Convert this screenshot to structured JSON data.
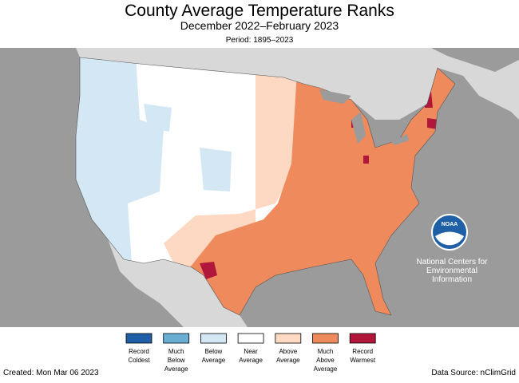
{
  "header": {
    "title": "County Average Temperature Ranks",
    "subtitle": "December 2022–February 2023",
    "period": "Period: 1895–2023"
  },
  "legend": [
    {
      "lines": [
        "Record",
        "Coldest"
      ],
      "color": "#1f5fa6"
    },
    {
      "lines": [
        "Much",
        "Below",
        "Average"
      ],
      "color": "#6aaed6"
    },
    {
      "lines": [
        "Below",
        "Average"
      ],
      "color": "#d4e7f5"
    },
    {
      "lines": [
        "Near",
        "Average"
      ],
      "color": "#ffffff"
    },
    {
      "lines": [
        "Above",
        "Average"
      ],
      "color": "#fdd8c2"
    },
    {
      "lines": [
        "Much",
        "Above",
        "Average"
      ],
      "color": "#ee8a5b"
    },
    {
      "lines": [
        "Record",
        "Warmest"
      ],
      "color": "#b0173a"
    }
  ],
  "logo": {
    "text": "NOAA",
    "caption": [
      "National Centers for",
      "Environmental",
      "Information"
    ]
  },
  "footer": {
    "created": "Created: Mon Mar 06 2023",
    "source": "Data Source: nClimGrid"
  }
}
